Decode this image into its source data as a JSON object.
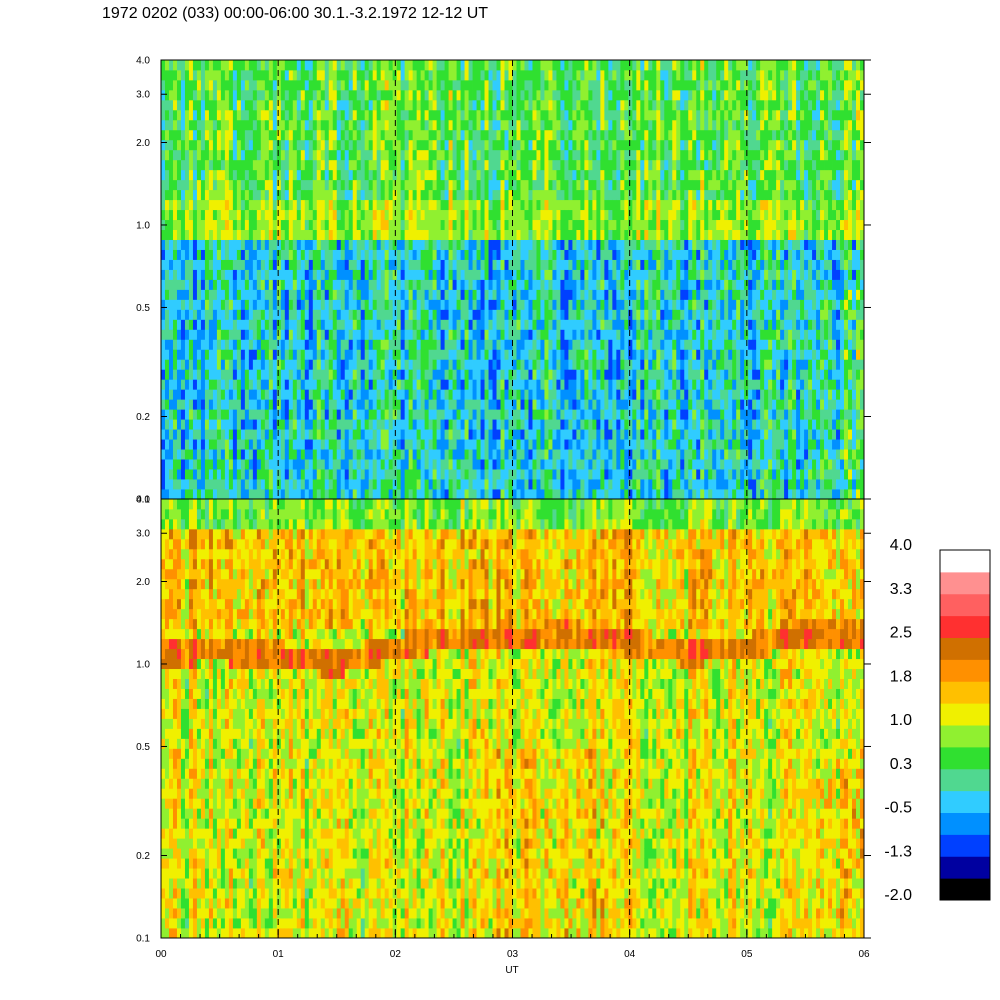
{
  "title": "1972 0202 (033) 00:00-06:00 30.1.-3.2.1972  12-12 UT",
  "chart_data": {
    "type": "heatmap",
    "xlabel": "UT",
    "x_ticks": [
      "00",
      "01",
      "02",
      "03",
      "04",
      "05",
      "06"
    ],
    "xlim": [
      0,
      6
    ],
    "hour_markers": [
      1,
      2,
      3,
      4,
      5
    ],
    "panels": [
      {
        "name": "",
        "ylim": [
          0.1,
          4.0
        ],
        "y_scale": "log",
        "y_ticks": [
          {
            "label": "4.0",
            "value": 4.0
          },
          {
            "label": "3.0",
            "value": 3.0
          },
          {
            "label": "2.0",
            "value": 2.0
          },
          {
            "label": "1.0",
            "value": 1.0
          },
          {
            "label": "0.5",
            "value": 0.5
          },
          {
            "label": "0.2",
            "value": 0.2
          },
          {
            "label": "0.1",
            "value": 0.1
          }
        ],
        "typical_levels": [
          {
            "freq_range": [
              1.2,
              4.0
            ],
            "level_range": [
              0.0,
              1.0
            ]
          },
          {
            "freq_range": [
              0.9,
              1.2
            ],
            "level_range": [
              0.5,
              1.2
            ]
          },
          {
            "freq_range": [
              0.1,
              0.9
            ],
            "level_range": [
              -0.8,
              0.5
            ]
          }
        ]
      },
      {
        "name": "",
        "ylim": [
          0.1,
          4.0
        ],
        "y_scale": "log",
        "y_ticks": [
          {
            "label": "4.0",
            "value": 4.0
          },
          {
            "label": "3.0",
            "value": 3.0
          },
          {
            "label": "2.0",
            "value": 2.0
          },
          {
            "label": "1.0",
            "value": 1.0
          },
          {
            "label": "0.5",
            "value": 0.5
          },
          {
            "label": "0.2",
            "value": 0.2
          },
          {
            "label": "0.1",
            "value": 0.1
          }
        ],
        "band_center_freq": [
          {
            "t": 0.0,
            "f": 1.1
          },
          {
            "t": 0.5,
            "f": 1.12
          },
          {
            "t": 1.0,
            "f": 1.08
          },
          {
            "t": 1.5,
            "f": 1.0
          },
          {
            "t": 2.0,
            "f": 1.15
          },
          {
            "t": 2.5,
            "f": 1.25
          },
          {
            "t": 3.0,
            "f": 1.25
          },
          {
            "t": 3.5,
            "f": 1.28
          },
          {
            "t": 4.0,
            "f": 1.2
          },
          {
            "t": 4.5,
            "f": 1.1
          },
          {
            "t": 5.0,
            "f": 1.15
          },
          {
            "t": 5.5,
            "f": 1.3
          },
          {
            "t": 6.0,
            "f": 1.3
          }
        ],
        "typical_levels": [
          {
            "freq_range": [
              3.2,
              4.0
            ],
            "level_range": [
              0.3,
              1.0
            ]
          },
          {
            "freq_range": [
              1.4,
              3.2
            ],
            "level_range": [
              1.0,
              2.0
            ]
          },
          {
            "freq_range": [
              0.1,
              1.4
            ],
            "level_range": [
              0.6,
              1.6
            ]
          }
        ]
      }
    ],
    "colorbar": {
      "tick_labels": [
        "4.0",
        "3.3",
        "2.5",
        "1.8",
        "1.0",
        "0.3",
        "-0.5",
        "-1.3",
        "-2.0"
      ],
      "range": [
        -2.0,
        4.0
      ],
      "colors": [
        "#000000",
        "#0000a0",
        "#0040ff",
        "#0090ff",
        "#30ccff",
        "#50d890",
        "#30e030",
        "#90f030",
        "#f0f000",
        "#ffc000",
        "#ff9000",
        "#d07000",
        "#ff3030",
        "#ff6060",
        "#ff9090",
        "#ffffff"
      ]
    }
  }
}
